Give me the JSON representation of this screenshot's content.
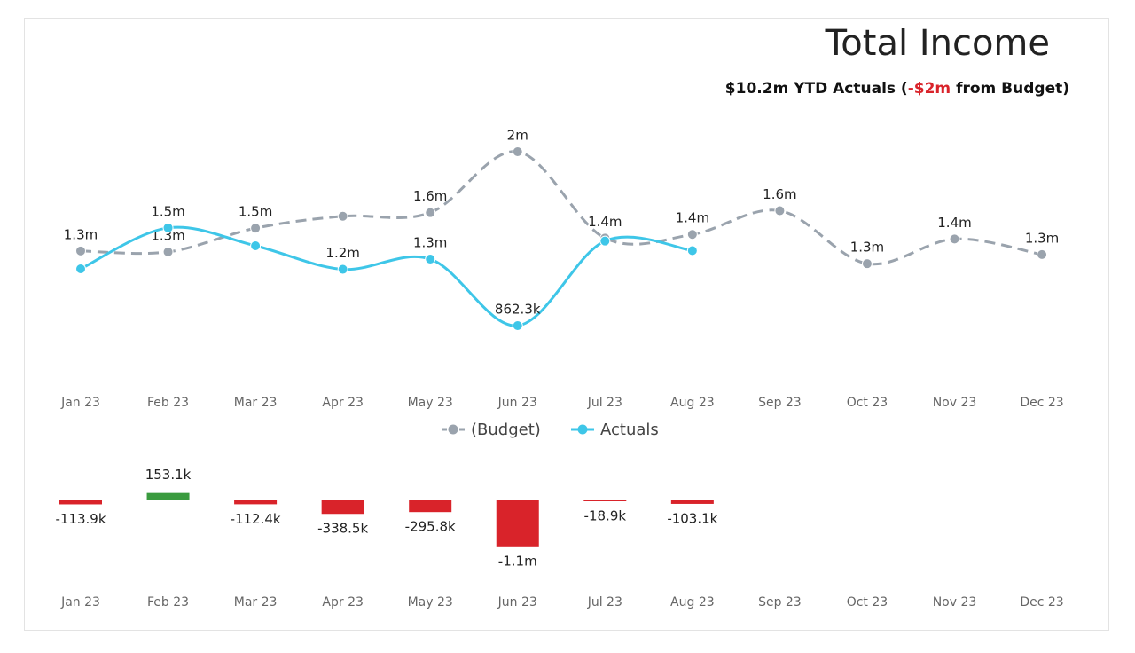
{
  "header": {
    "title": "Total Income",
    "subtitle": [
      "$10.2m YTD Actuals (",
      "-$2m",
      " from Budget)"
    ]
  },
  "chart_data": [
    {
      "type": "line",
      "categories": [
        "Jan 23",
        "Feb 23",
        "Mar 23",
        "Apr 23",
        "May 23",
        "Jun 23",
        "Jul 23",
        "Aug 23",
        "Sep 23",
        "Oct 23",
        "Nov 23",
        "Dec 23"
      ],
      "series": [
        {
          "name": "(Budget)",
          "color": "#9aa3ad",
          "dashed": true,
          "values": [
            1338000,
            1332000,
            1483000,
            1559000,
            1582000,
            1970000,
            1420000,
            1443000,
            1594000,
            1257000,
            1414000,
            1315000
          ],
          "value_labels": [
            "1.3m",
            "1.3m",
            "1.5m",
            null,
            "1.6m",
            "2m",
            "1.4m",
            "1.4m",
            "1.6m",
            "1.3m",
            "1.4m",
            "1.3m"
          ]
        },
        {
          "name": "Actuals",
          "color": "#3ec6e8",
          "dashed": false,
          "values": [
            1224000,
            1485000,
            1371000,
            1221000,
            1286000,
            862300,
            1401000,
            1340000,
            null,
            null,
            null,
            null
          ],
          "value_labels": [
            null,
            "1.5m",
            null,
            "1.2m",
            "1.3m",
            "862.3k",
            null,
            null,
            null,
            null,
            null,
            null
          ]
        }
      ]
    },
    {
      "type": "bar",
      "categories": [
        "Jan 23",
        "Feb 23",
        "Mar 23",
        "Apr 23",
        "May 23",
        "Jun 23",
        "Jul 23",
        "Aug 23",
        "Sep 23",
        "Oct 23",
        "Nov 23",
        "Dec 23"
      ],
      "values": [
        -113900,
        153100,
        -112400,
        -338500,
        -295800,
        -1100000,
        -18900,
        -103100,
        null,
        null,
        null,
        null
      ],
      "value_labels": [
        "-113.9k",
        "153.1k",
        "-112.4k",
        "-338.5k",
        "-295.8k",
        "-1.1m",
        "-18.9k",
        "-103.1k",
        null,
        null,
        null,
        null
      ],
      "positive_color": "#3a9b3f",
      "negative_color": "#d9232a"
    }
  ]
}
